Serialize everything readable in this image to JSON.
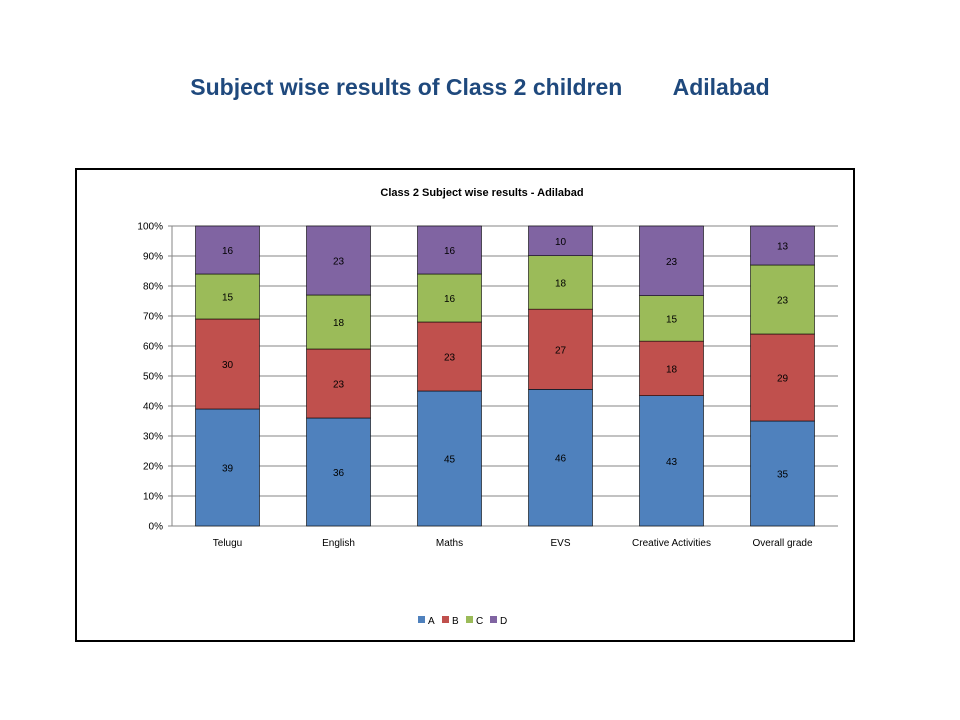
{
  "slide": {
    "title": "Subject wise results of Class 2 children        Adilabad"
  },
  "chart_data": {
    "type": "bar",
    "stacked": "percent",
    "title": "Class 2                       Subject wise results - Adilabad",
    "categories": [
      "Telugu",
      "English",
      "Maths",
      "EVS",
      "Creative Activities",
      "Overall grade"
    ],
    "series": [
      {
        "name": "A",
        "color": "#4f81bd",
        "values": [
          39,
          36,
          45,
          46,
          43,
          35
        ]
      },
      {
        "name": "B",
        "color": "#c0504d",
        "values": [
          30,
          23,
          23,
          27,
          18,
          29
        ]
      },
      {
        "name": "C",
        "color": "#9bbb59",
        "values": [
          15,
          18,
          16,
          18,
          15,
          23
        ]
      },
      {
        "name": "D",
        "color": "#8064a2",
        "values": [
          16,
          23,
          16,
          10,
          23,
          13
        ]
      }
    ],
    "y_ticks": [
      "0%",
      "10%",
      "20%",
      "30%",
      "40%",
      "50%",
      "60%",
      "70%",
      "80%",
      "90%",
      "100%"
    ],
    "ylim": [
      0,
      100
    ],
    "grid": true,
    "legend": "bottom"
  }
}
